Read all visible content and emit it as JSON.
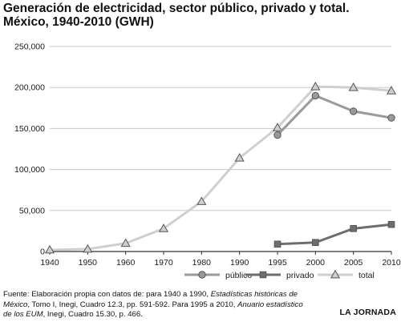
{
  "title": {
    "line1": "Generación de electricidad, sector público, privado y total.",
    "line2": "México, 1940-2010 (GWH)"
  },
  "chart_data": {
    "type": "line",
    "title": "Generación de electricidad, sector público, privado y total. México, 1940-2010 (GWH)",
    "categories": [
      "1940",
      "1950",
      "1960",
      "1970",
      "1980",
      "1990",
      "1995",
      "2000",
      "2005",
      "2010"
    ],
    "x": [
      1940,
      1950,
      1960,
      1970,
      1980,
      1990,
      1995,
      2000,
      2005,
      2010
    ],
    "ylim": [
      0,
      250000
    ],
    "yticks": [
      0,
      50000,
      100000,
      150000,
      200000,
      250000
    ],
    "ytick_labels": [
      "0",
      "50,000",
      "100,000",
      "150,000",
      "200,000",
      "250,000"
    ],
    "grid": "horizontal",
    "legend_position": "bottom",
    "series": [
      {
        "name": "público",
        "marker": "circle",
        "color": "#9a9a9a",
        "x": [
          1995,
          2000,
          2005,
          2010
        ],
        "values": [
          142000,
          190000,
          171000,
          163000
        ]
      },
      {
        "name": "privado",
        "marker": "square",
        "color": "#6e6e6e",
        "x": [
          1995,
          2000,
          2005,
          2010
        ],
        "values": [
          9000,
          11000,
          28000,
          33000
        ]
      },
      {
        "name": "total",
        "marker": "triangle",
        "color": "#cfcfcf",
        "x": [
          1940,
          1950,
          1960,
          1970,
          1980,
          1990,
          1995,
          2000,
          2005,
          2010
        ],
        "values": [
          2000,
          3000,
          10000,
          28000,
          61000,
          114000,
          151000,
          201000,
          200000,
          196000
        ]
      }
    ]
  },
  "source": {
    "prefix": "Fuente: Elaboración propia con datos de: para 1940 a 1990, ",
    "italic1": "Estadísticas históricas de México",
    "middle": ", Tomo I, Inegi, Cuadro 12.3, pp. 591-592. Para 1995 a 2010, ",
    "italic2": "Anuario estadístico de los EUM",
    "suffix": ", Inegi, Cuadro 15.30, p. 466."
  },
  "brand": "LA JORNADA"
}
